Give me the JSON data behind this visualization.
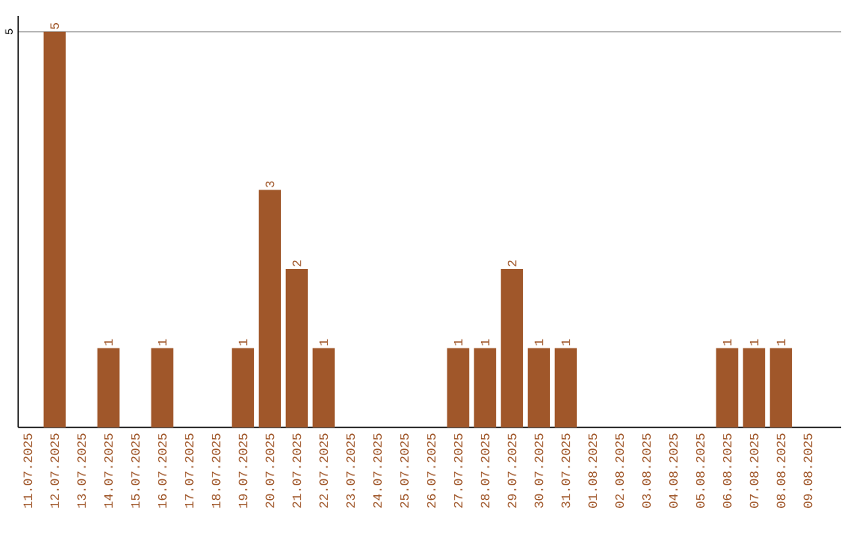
{
  "chart_data": {
    "type": "bar",
    "categories": [
      "11.07.2025",
      "12.07.2025",
      "13.07.2025",
      "14.07.2025",
      "15.07.2025",
      "16.07.2025",
      "17.07.2025",
      "18.07.2025",
      "19.07.2025",
      "20.07.2025",
      "21.07.2025",
      "22.07.2025",
      "23.07.2025",
      "24.07.2025",
      "25.07.2025",
      "26.07.2025",
      "27.07.2025",
      "28.07.2025",
      "29.07.2025",
      "30.07.2025",
      "31.07.2025",
      "01.08.2025",
      "02.08.2025",
      "03.08.2025",
      "04.08.2025",
      "05.08.2025",
      "06.08.2025",
      "07.08.2025",
      "08.08.2025",
      "09.08.2025"
    ],
    "values": [
      0,
      5,
      0,
      1,
      0,
      1,
      0,
      0,
      1,
      3,
      2,
      1,
      0,
      0,
      0,
      0,
      1,
      1,
      2,
      1,
      1,
      0,
      0,
      0,
      0,
      0,
      1,
      1,
      1,
      0
    ],
    "value_labels": [
      null,
      "5",
      null,
      "1",
      null,
      "1",
      null,
      null,
      "1",
      "3",
      "2",
      "1",
      null,
      null,
      null,
      null,
      "1",
      "1",
      "2",
      "1",
      "1",
      null,
      null,
      null,
      null,
      null,
      "1",
      "1",
      "1",
      null
    ],
    "color": "#a0572a",
    "ylim": [
      0,
      5.2
    ],
    "yticks": [
      5
    ],
    "grid": "y"
  }
}
